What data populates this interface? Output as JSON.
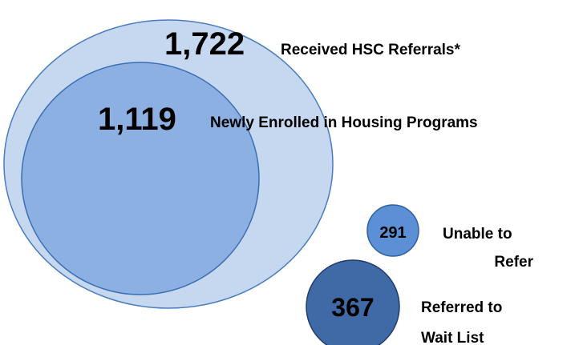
{
  "nodes": [
    {
      "value": "1,722",
      "label": [
        "Received HSC Referrals*"
      ]
    },
    {
      "value": "1,119",
      "label": [
        "Newly Enrolled in Housing Programs"
      ]
    },
    {
      "value": "291",
      "label": [
        "Unable to",
        "Refer"
      ]
    },
    {
      "value": "367",
      "label": [
        "Referred to",
        "Wait List"
      ]
    }
  ]
}
